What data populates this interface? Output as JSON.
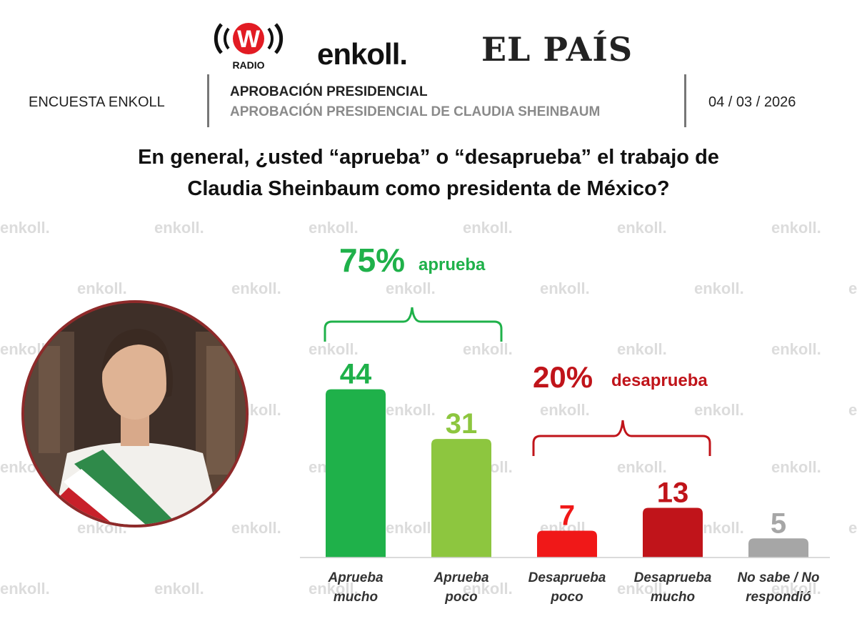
{
  "brands": {
    "wradio": "W",
    "wradio_sub": "RADIO",
    "enkoll": "enkoll.",
    "elpais": "EL PAÍS"
  },
  "header": {
    "left": "ENCUESTA ENKOLL",
    "title": "APROBACIÓN PRESIDENCIAL",
    "subtitle": "APROBACIÓN PRESIDENCIAL DE CLAUDIA SHEINBAUM",
    "date": "04 / 03 / 2026"
  },
  "question": {
    "line1": "En general, ¿usted “aprueba” o “desaprueba” el trabajo de",
    "line2": "Claudia Sheinbaum como presidenta de México?"
  },
  "watermark_text": "enkoll.",
  "groups": {
    "approve_pct": "75%",
    "approve_label": "aprueba",
    "disapprove_pct": "20%",
    "disapprove_label": "desaprueba"
  },
  "colors": {
    "approve_strong": "#1fb14a",
    "approve_light": "#8dc63f",
    "disapprove_light": "#f01818",
    "disapprove_strong": "#c0141a",
    "neutral": "#a6a6a6",
    "approve_text": "#1fb14a",
    "disapprove_text": "#c0141a"
  },
  "chart_data": {
    "type": "bar",
    "categories": [
      [
        "Aprueba",
        "mucho"
      ],
      [
        "Aprueba",
        "poco"
      ],
      [
        "Desaprueba",
        "poco"
      ],
      [
        "Desaprueba",
        "mucho"
      ],
      [
        "No sabe / No",
        "respondió"
      ]
    ],
    "values": [
      44,
      31,
      7,
      13,
      5
    ],
    "ylim": [
      0,
      50
    ],
    "grid": false,
    "legend": "none"
  }
}
